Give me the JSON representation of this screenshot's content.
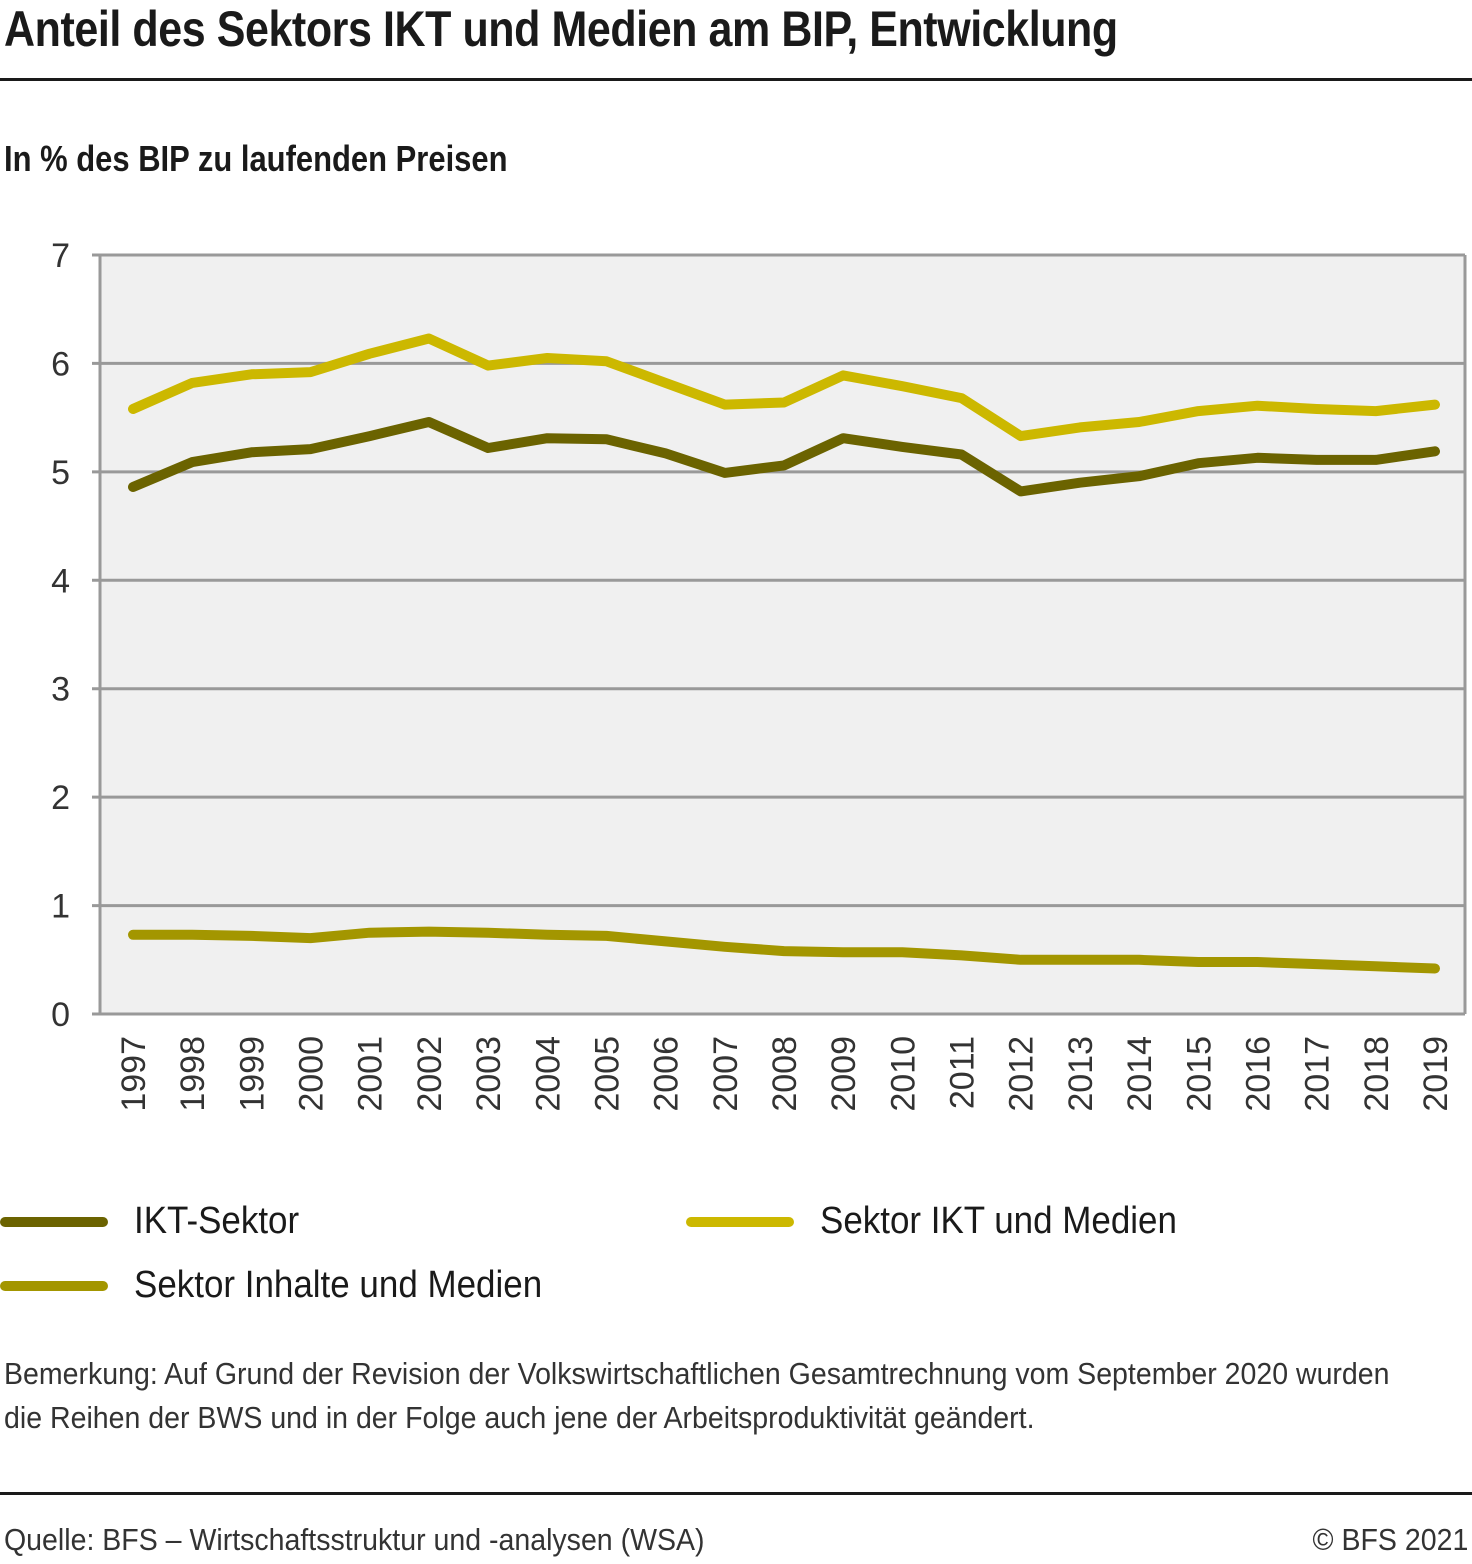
{
  "header": {
    "title": "Anteil des Sektors IKT und Medien am BIP, Entwicklung",
    "subtitle": "In % des BIP zu laufenden Preisen"
  },
  "chart_data": {
    "type": "line",
    "title": "Anteil des Sektors IKT und Medien am BIP, Entwicklung",
    "subtitle": "In % des BIP zu laufenden Preisen",
    "xlabel": "",
    "ylabel": "",
    "ylim": [
      0,
      7
    ],
    "yticks": [
      "0",
      "1",
      "2",
      "3",
      "4",
      "5",
      "6",
      "7"
    ],
    "grid": true,
    "legend_position": "bottom",
    "x": [
      "1997",
      "1998",
      "1999",
      "2000",
      "2001",
      "2002",
      "2003",
      "2004",
      "2005",
      "2006",
      "2007",
      "2008",
      "2009",
      "2010",
      "2011",
      "2012",
      "2013",
      "2014",
      "2015",
      "2016",
      "2017",
      "2018",
      "2019"
    ],
    "series": [
      {
        "name": "IKT-Sektor",
        "color": "#6b6300",
        "values": [
          4.86,
          5.09,
          5.18,
          5.21,
          5.33,
          5.46,
          5.22,
          5.31,
          5.3,
          5.17,
          4.99,
          5.06,
          5.31,
          5.23,
          5.16,
          4.82,
          4.9,
          4.96,
          5.08,
          5.13,
          5.11,
          5.11,
          5.19
        ]
      },
      {
        "name": "Sektor IKT und Medien",
        "color": "#ccb800",
        "values": [
          5.58,
          5.82,
          5.9,
          5.92,
          6.09,
          6.23,
          5.98,
          6.05,
          6.02,
          5.82,
          5.62,
          5.64,
          5.89,
          5.79,
          5.68,
          5.33,
          5.41,
          5.46,
          5.56,
          5.61,
          5.58,
          5.56,
          5.62
        ]
      },
      {
        "name": "Sektor Inhalte und Medien",
        "color": "#a39600",
        "values": [
          0.73,
          0.73,
          0.72,
          0.7,
          0.75,
          0.76,
          0.75,
          0.73,
          0.72,
          0.67,
          0.62,
          0.58,
          0.57,
          0.57,
          0.54,
          0.5,
          0.5,
          0.5,
          0.48,
          0.48,
          0.46,
          0.44,
          0.42
        ]
      }
    ],
    "colors": {
      "plot_background": "#f0f0f0",
      "gridline": "#999999",
      "axis": "#999999"
    }
  },
  "legend": [
    {
      "label": "IKT-Sektor",
      "color": "#6b6300"
    },
    {
      "label": "Sektor IKT und Medien",
      "color": "#ccb800"
    },
    {
      "label": "Sektor Inhalte und Medien",
      "color": "#a39600"
    }
  ],
  "footer": {
    "note": "Bemerkung: Auf Grund der Revision der Volkswirtschaftlichen Gesamtrechnung vom September 2020 wurden die Reihen der BWS und in der Folge auch jene der Arbeitsproduktivität geändert.",
    "source": "Quelle: BFS – Wirtschaftsstruktur und -analysen  (WSA)",
    "copyright": "© BFS 2021"
  }
}
